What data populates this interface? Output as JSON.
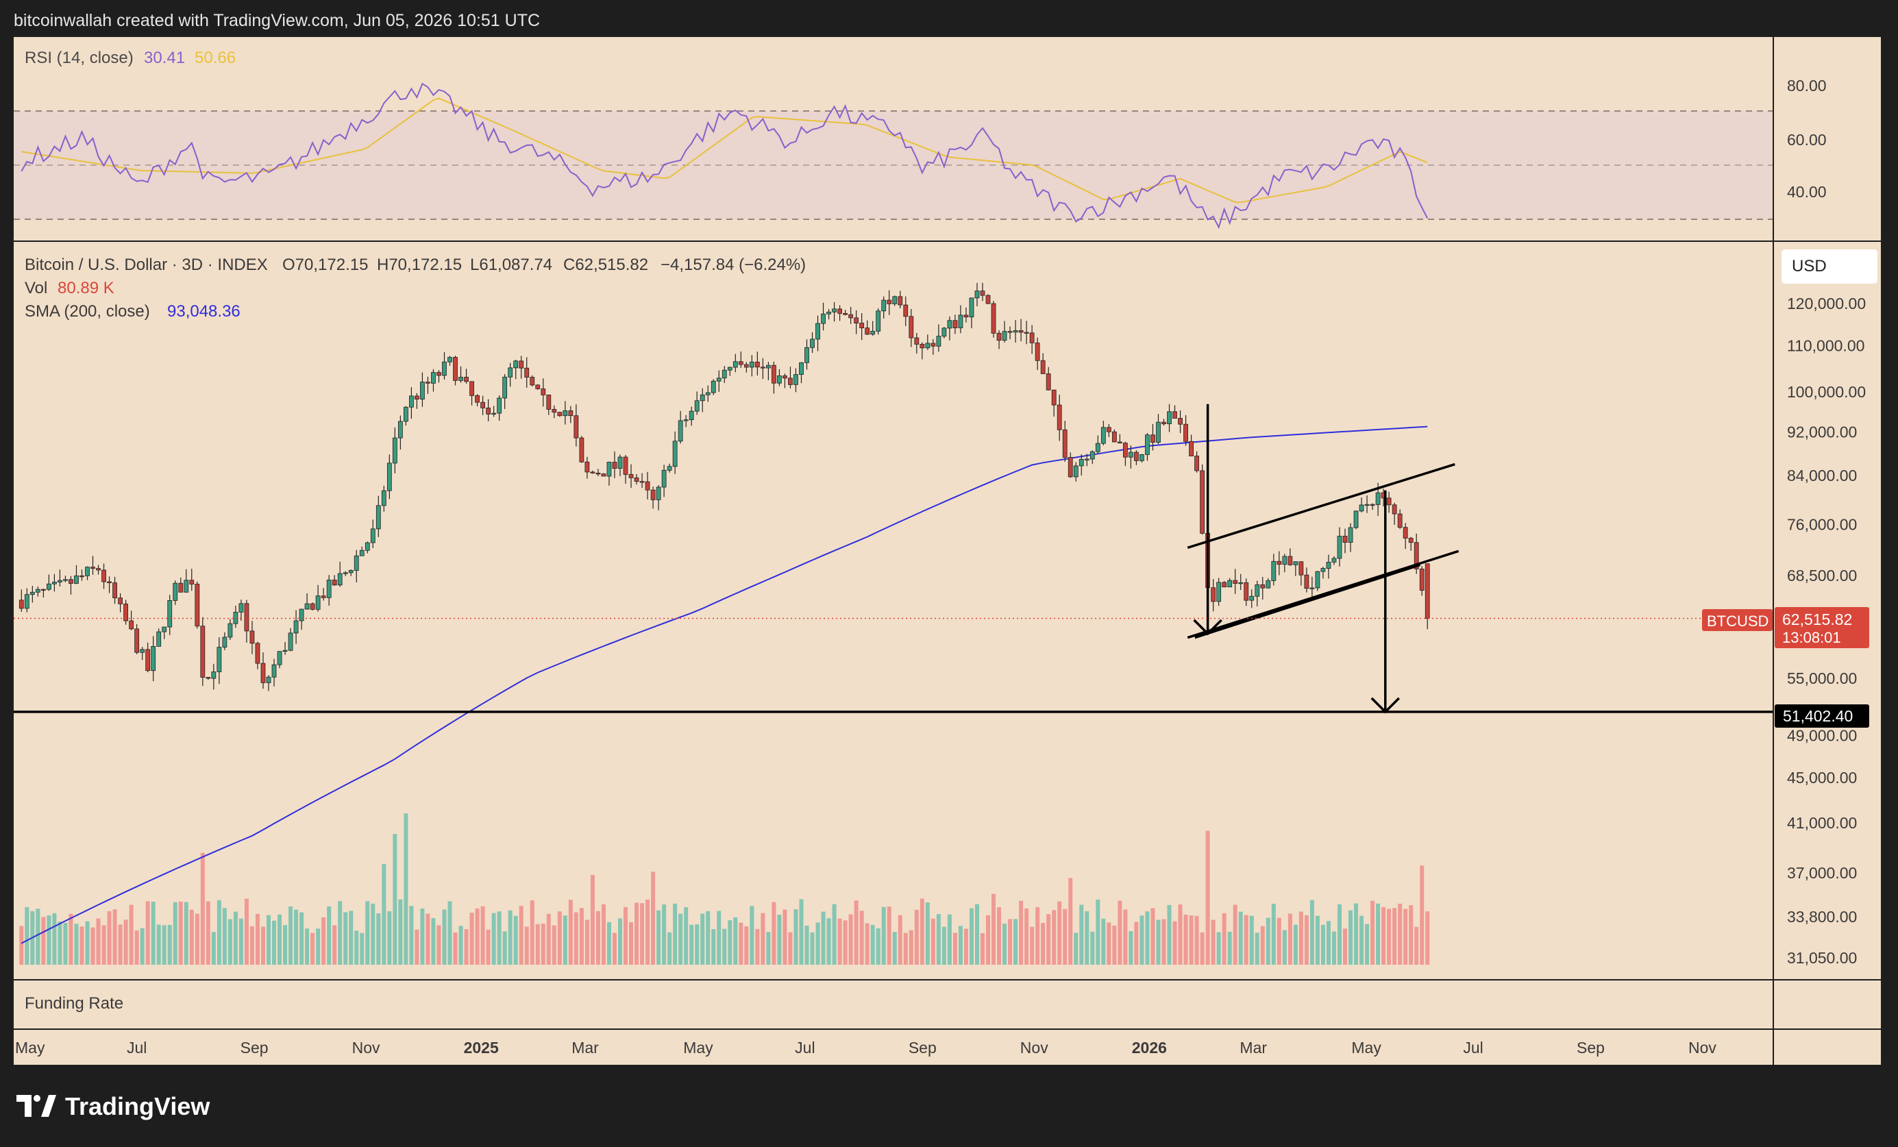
{
  "header": {
    "credit": "bitcoinwallah created with TradingView.com, Jun 05, 2026 10:51 UTC"
  },
  "footer": {
    "brand": "TradingView"
  },
  "colors": {
    "background": "#1e1e1e",
    "panel": "#f2dfc9",
    "rsi_band": "#ead5cf",
    "bull": "#3a9a7e",
    "bear": "#c2433a",
    "vol_bull": "#84c6b3",
    "vol_bear": "#ef9a94",
    "sma": "#2e2edc",
    "rsi_line": "#8a5fcc",
    "rsi_ma": "#e8c13c",
    "price_badge": "#d9473a"
  },
  "rsi_panel": {
    "title": "RSI (14, close)",
    "value": "30.41",
    "ma_value": "50.66",
    "levels": [
      "80.00",
      "60.00",
      "40.00"
    ]
  },
  "main_panel": {
    "symbol": "Bitcoin / U.S. Dollar · 3D · INDEX",
    "o": "O70,172.15",
    "h": "H70,172.15",
    "l": "L61,087.74",
    "c": "C62,515.82",
    "change": "−4,157.84 (−6.24%)",
    "vol_label": "Vol",
    "vol_value": "80.89 K",
    "sma_label": "SMA (200, close)",
    "sma_value": "93,048.36",
    "currency": "USD",
    "price_levels": [
      "120,000.00",
      "110,000.00",
      "100,000.00",
      "92,000.00",
      "84,000.00",
      "76,000.00",
      "68,500.00",
      "55,000.00",
      "49,000.00",
      "45,000.00",
      "41,000.00",
      "37,000.00",
      "33,800.00",
      "31,050.00"
    ],
    "ticker_badge": "BTCUSD",
    "last_price": "62,515.82",
    "countdown": "13:08:01",
    "target_price": "51,402.40"
  },
  "funding_panel": {
    "title": "Funding Rate"
  },
  "time_axis": {
    "labels": [
      "May",
      "Jul",
      "Sep",
      "Nov",
      "2025",
      "Mar",
      "May",
      "Jul",
      "Sep",
      "Nov",
      "2026",
      "Mar",
      "May",
      "Jul",
      "Sep",
      "Nov"
    ],
    "bold": [
      false,
      false,
      false,
      false,
      true,
      false,
      false,
      false,
      false,
      false,
      true,
      false,
      false,
      false,
      false,
      false
    ]
  },
  "chart_data": {
    "type": "candlestick",
    "symbol": "BTCUSD",
    "timeframe": "3D",
    "x_range": [
      "2024-05",
      "2026-12"
    ],
    "y_scale": "log",
    "price_ylim": [
      28500,
      135000
    ],
    "rsi_ylim": [
      28,
      90
    ],
    "price_waypoints": [
      {
        "t": "2024-04-27",
        "p": 65000
      },
      {
        "t": "2024-05-20",
        "p": 67000
      },
      {
        "t": "2024-06-08",
        "p": 69500
      },
      {
        "t": "2024-06-25",
        "p": 61000
      },
      {
        "t": "2024-07-05",
        "p": 56000
      },
      {
        "t": "2024-07-20",
        "p": 66500
      },
      {
        "t": "2024-07-29",
        "p": 68000
      },
      {
        "t": "2024-08-05",
        "p": 54000
      },
      {
        "t": "2024-08-25",
        "p": 64000
      },
      {
        "t": "2024-09-06",
        "p": 54000
      },
      {
        "t": "2024-09-30",
        "p": 64000
      },
      {
        "t": "2024-10-20",
        "p": 68500
      },
      {
        "t": "2024-11-06",
        "p": 75000
      },
      {
        "t": "2024-11-22",
        "p": 97000
      },
      {
        "t": "2024-12-17",
        "p": 106000
      },
      {
        "t": "2025-01-06",
        "p": 94000
      },
      {
        "t": "2025-01-21",
        "p": 106000
      },
      {
        "t": "2025-02-05",
        "p": 98000
      },
      {
        "t": "2025-02-20",
        "p": 96000
      },
      {
        "t": "2025-02-28",
        "p": 84000
      },
      {
        "t": "2025-03-22",
        "p": 86000
      },
      {
        "t": "2025-04-08",
        "p": 79000
      },
      {
        "t": "2025-04-22",
        "p": 93000
      },
      {
        "t": "2025-05-22",
        "p": 108000
      },
      {
        "t": "2025-06-22",
        "p": 101000
      },
      {
        "t": "2025-07-14",
        "p": 121000
      },
      {
        "t": "2025-08-02",
        "p": 113000
      },
      {
        "t": "2025-08-14",
        "p": 122000
      },
      {
        "t": "2025-09-01",
        "p": 109000
      },
      {
        "t": "2025-09-20",
        "p": 116000
      },
      {
        "t": "2025-10-06",
        "p": 124000
      },
      {
        "t": "2025-10-11",
        "p": 112000
      },
      {
        "t": "2025-10-28",
        "p": 114000
      },
      {
        "t": "2025-11-21",
        "p": 85000
      },
      {
        "t": "2025-12-10",
        "p": 92000
      },
      {
        "t": "2025-12-26",
        "p": 87000
      },
      {
        "t": "2026-01-14",
        "p": 95000
      },
      {
        "t": "2026-01-28",
        "p": 88000
      },
      {
        "t": "2026-02-05",
        "p": 63000
      },
      {
        "t": "2026-02-12",
        "p": 68000
      },
      {
        "t": "2026-02-28",
        "p": 65500
      },
      {
        "t": "2026-03-17",
        "p": 72000
      },
      {
        "t": "2026-04-01",
        "p": 66500
      },
      {
        "t": "2026-05-01",
        "p": 79000
      },
      {
        "t": "2026-05-07",
        "p": 81000
      },
      {
        "t": "2026-05-21",
        "p": 76000
      },
      {
        "t": "2026-05-30",
        "p": 70000
      },
      {
        "t": "2026-06-05",
        "p": 62516
      }
    ],
    "sma_200": [
      {
        "t": "2024-04-27",
        "p": 32000
      },
      {
        "t": "2024-09-01",
        "p": 40000
      },
      {
        "t": "2024-11-15",
        "p": 46500
      },
      {
        "t": "2025-02-01",
        "p": 55500
      },
      {
        "t": "2025-05-01",
        "p": 63500
      },
      {
        "t": "2025-08-01",
        "p": 74000
      },
      {
        "t": "2025-11-01",
        "p": 86000
      },
      {
        "t": "2026-01-01",
        "p": 89300
      },
      {
        "t": "2026-03-01",
        "p": 91000
      },
      {
        "t": "2026-06-05",
        "p": 93048
      }
    ],
    "rsi_14": [
      {
        "t": "2024-04-27",
        "v": 51
      },
      {
        "t": "2024-05-30",
        "v": 60
      },
      {
        "t": "2024-06-30",
        "v": 42
      },
      {
        "t": "2024-07-28",
        "v": 58
      },
      {
        "t": "2024-08-08",
        "v": 43
      },
      {
        "t": "2024-09-10",
        "v": 46
      },
      {
        "t": "2024-10-10",
        "v": 58
      },
      {
        "t": "2024-11-10",
        "v": 72
      },
      {
        "t": "2024-11-26",
        "v": 79
      },
      {
        "t": "2024-12-17",
        "v": 73
      },
      {
        "t": "2025-01-10",
        "v": 60
      },
      {
        "t": "2025-02-12",
        "v": 52
      },
      {
        "t": "2025-03-05",
        "v": 42
      },
      {
        "t": "2025-04-08",
        "v": 46
      },
      {
        "t": "2025-05-08",
        "v": 64
      },
      {
        "t": "2025-05-22",
        "v": 70
      },
      {
        "t": "2025-06-22",
        "v": 58
      },
      {
        "t": "2025-07-14",
        "v": 70
      },
      {
        "t": "2025-08-20",
        "v": 62
      },
      {
        "t": "2025-09-01",
        "v": 48
      },
      {
        "t": "2025-10-06",
        "v": 61
      },
      {
        "t": "2025-10-20",
        "v": 47
      },
      {
        "t": "2025-11-21",
        "v": 32
      },
      {
        "t": "2025-12-15",
        "v": 36
      },
      {
        "t": "2026-01-14",
        "v": 46
      },
      {
        "t": "2026-01-25",
        "v": 38
      },
      {
        "t": "2026-02-05",
        "v": 28
      },
      {
        "t": "2026-02-18",
        "v": 32
      },
      {
        "t": "2026-03-17",
        "v": 46
      },
      {
        "t": "2026-04-10",
        "v": 48
      },
      {
        "t": "2026-05-04",
        "v": 59
      },
      {
        "t": "2026-05-20",
        "v": 54
      },
      {
        "t": "2026-06-05",
        "v": 30.41
      }
    ],
    "rsi_ma_14": [
      {
        "t": "2024-04-27",
        "v": 55
      },
      {
        "t": "2024-07-01",
        "v": 48
      },
      {
        "t": "2024-09-01",
        "v": 47
      },
      {
        "t": "2024-11-01",
        "v": 56
      },
      {
        "t": "2024-12-10",
        "v": 75
      },
      {
        "t": "2025-01-20",
        "v": 63
      },
      {
        "t": "2025-03-10",
        "v": 48
      },
      {
        "t": "2025-04-15",
        "v": 45
      },
      {
        "t": "2025-06-01",
        "v": 68
      },
      {
        "t": "2025-08-01",
        "v": 65
      },
      {
        "t": "2025-09-15",
        "v": 53
      },
      {
        "t": "2025-11-01",
        "v": 50
      },
      {
        "t": "2025-12-10",
        "v": 37
      },
      {
        "t": "2026-01-20",
        "v": 45
      },
      {
        "t": "2026-02-20",
        "v": 36
      },
      {
        "t": "2026-04-10",
        "v": 42
      },
      {
        "t": "2026-05-20",
        "v": 55
      },
      {
        "t": "2026-06-05",
        "v": 50.66
      }
    ],
    "volume_spikes": [
      {
        "t": "2024-08-05",
        "rel": 0.71
      },
      {
        "t": "2024-11-12",
        "rel": 0.64
      },
      {
        "t": "2024-11-18",
        "rel": 0.83
      },
      {
        "t": "2024-11-24",
        "rel": 0.96
      },
      {
        "t": "2025-03-04",
        "rel": 0.57
      },
      {
        "t": "2025-04-08",
        "rel": 0.59
      },
      {
        "t": "2025-10-11",
        "rel": 0.45
      },
      {
        "t": "2025-11-21",
        "rel": 0.55
      },
      {
        "t": "2026-02-05",
        "rel": 0.85
      },
      {
        "t": "2026-06-02",
        "rel": 0.63
      }
    ],
    "annotations": {
      "channel_upper": [
        {
          "t": "2026-01-24",
          "p": 72500
        },
        {
          "t": "2026-06-19",
          "p": 86000
        }
      ],
      "channel_lower": [
        {
          "t": "2026-01-28",
          "p": 60000
        },
        {
          "t": "2026-05-31",
          "p": 70000
        }
      ],
      "channel_outer": [
        {
          "t": "2026-01-24",
          "p": 60000
        },
        {
          "t": "2026-06-21",
          "p": 72000
        }
      ],
      "flagpole_arrow": {
        "t": "2026-02-04",
        "p_from": 97500,
        "p_to": 60500
      },
      "target_arrow": {
        "t": "2026-05-12",
        "p_from": 81500,
        "p_to": 51402.4
      },
      "target_level": 51402.4
    }
  }
}
